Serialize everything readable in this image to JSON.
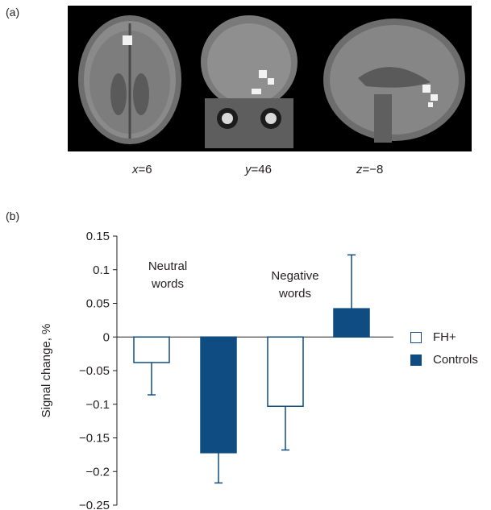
{
  "panel_a": {
    "label": "(a)",
    "coordinates": [
      {
        "axis": "x",
        "value": "=6"
      },
      {
        "axis": "y",
        "value": "=46"
      },
      {
        "axis": "z",
        "value": "=−8"
      }
    ]
  },
  "panel_b": {
    "label": "(b)"
  },
  "colors": {
    "controls": "#0f4c81",
    "fh_plus": "#ffffff",
    "outline": "#0f4c81",
    "axis": "#231f20"
  },
  "chart_data": {
    "type": "bar",
    "ylabel": "Signal change, %",
    "ylim": [
      -0.25,
      0.15
    ],
    "yticks": [
      0.15,
      0.1,
      0.05,
      0,
      -0.05,
      -0.1,
      -0.15,
      -0.2,
      -0.25
    ],
    "ytick_labels": [
      "0.15",
      "0.1",
      "0.05",
      "0",
      "−0.05",
      "−0.1",
      "−0.15",
      "−0.2",
      "−0.25"
    ],
    "groups": [
      {
        "label_lines": [
          "Neutral",
          "words"
        ]
      },
      {
        "label_lines": [
          "Negative",
          "words"
        ]
      }
    ],
    "series": [
      {
        "name": "FH+",
        "values": [
          -0.038,
          -0.103
        ],
        "error": [
          0.048,
          0.065
        ]
      },
      {
        "name": "Controls",
        "values": [
          -0.172,
          0.042
        ],
        "error": [
          0.045,
          0.08
        ]
      }
    ],
    "legend_position": "right"
  }
}
